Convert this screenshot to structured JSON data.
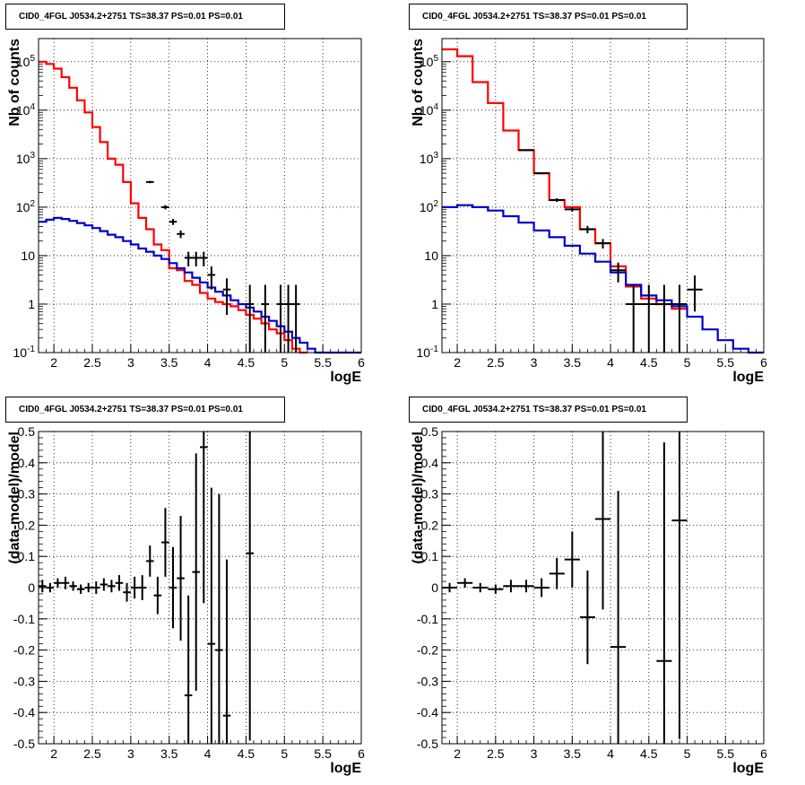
{
  "panels": [
    {
      "title": "CID0_4FGL J0534.2+2751 TS=38.37 PS=0.01 PS=0.01"
    },
    {
      "title": "CID0_4FGL J0534.2+2751 TS=38.37 PS=0.01 PS=0.01"
    },
    {
      "title": "CID0_4FGL J0534.2+2751 TS=38.37 PS=0.01 PS=0.01"
    },
    {
      "title": "CID0_4FGL J0534.2+2751 TS=38.37 PS=0.01 PS=0.01"
    }
  ],
  "colors": {
    "total_model": "#ff0000",
    "source_model": "#0000cc",
    "data": "#000000"
  },
  "chart_data": [
    {
      "type": "line",
      "title": "CID0_4FGL J0534.2+2751 TS=38.37 PS=0.01 PS=0.01",
      "xlabel": "logE",
      "ylabel": "Nb of counts",
      "xlim": [
        1.8,
        6.0
      ],
      "ylim": [
        0.1,
        300000
      ],
      "log_y": true,
      "grid": true,
      "x_ticks": [
        "2",
        "2.5",
        "3",
        "3.5",
        "4",
        "4.5",
        "5",
        "5.5",
        "6"
      ],
      "y_ticks": [
        "10^-1",
        "1",
        "10",
        "10^2",
        "10^3",
        "10^4",
        "10^5"
      ],
      "bin_width": 0.1,
      "series": [
        {
          "kind": "step",
          "color": "#ff0000",
          "x": [
            1.8,
            1.9,
            2.0,
            2.1,
            2.2,
            2.3,
            2.4,
            2.5,
            2.6,
            2.7,
            2.8,
            2.9,
            3.0,
            3.1,
            3.2,
            3.3,
            3.4,
            3.5,
            3.6,
            3.7,
            3.8,
            3.9,
            4.0,
            4.1,
            4.2,
            4.3,
            4.4,
            4.5,
            4.6,
            4.7,
            4.8,
            4.9,
            5.0,
            5.1,
            5.2
          ],
          "values": [
            100000,
            90000,
            72000,
            48000,
            29000,
            16000,
            9000,
            4500,
            2200,
            1000,
            750,
            330,
            120,
            60,
            35,
            17,
            13,
            5.5,
            5,
            3,
            2.5,
            1.7,
            1.3,
            1.1,
            1.0,
            0.9,
            0.75,
            0.6,
            0.5,
            0.4,
            0.3,
            0.25,
            0.18,
            0.12,
            0.1
          ]
        },
        {
          "kind": "step",
          "color": "#0000cc",
          "x": [
            1.8,
            1.9,
            2.0,
            2.1,
            2.2,
            2.3,
            2.4,
            2.5,
            2.6,
            2.7,
            2.8,
            2.9,
            3.0,
            3.1,
            3.2,
            3.3,
            3.4,
            3.5,
            3.6,
            3.7,
            3.8,
            3.9,
            4.0,
            4.1,
            4.2,
            4.3,
            4.4,
            4.5,
            4.6,
            4.7,
            4.8,
            4.9,
            5.0,
            5.1,
            5.2,
            5.3,
            5.4,
            5.5,
            5.6,
            5.7,
            5.8,
            5.9
          ],
          "values": [
            50,
            55,
            60,
            57,
            52,
            47,
            42,
            37,
            32,
            27,
            24,
            20,
            17,
            14,
            12,
            10,
            8.5,
            7,
            5.5,
            4.5,
            3.5,
            2.8,
            2.2,
            1.8,
            1.5,
            1.2,
            1.0,
            0.85,
            0.7,
            0.55,
            0.45,
            0.35,
            0.27,
            0.2,
            0.16,
            0.12,
            0.1,
            0.1,
            0.1,
            0.1,
            0.1,
            0.1
          ]
        },
        {
          "kind": "errorbars",
          "color": "#000000",
          "x": [
            3.25,
            3.45,
            3.55,
            3.65,
            3.75,
            3.85,
            3.95,
            4.05,
            4.25,
            4.55,
            4.75,
            4.95,
            5.05,
            5.15
          ],
          "values": [
            330,
            100,
            50,
            28,
            9,
            9,
            9,
            4,
            2,
            1,
            1,
            1,
            1,
            1
          ],
          "err_low": [
            18,
            10,
            7,
            5,
            3,
            3,
            3,
            2,
            1.4,
            0.9,
            0.9,
            0.9,
            0.9,
            0.9
          ],
          "err_high": [
            18,
            10,
            7,
            5,
            3,
            3,
            3,
            2,
            1.4,
            1.5,
            1.5,
            1.5,
            1.5,
            1.5
          ]
        }
      ]
    },
    {
      "type": "line",
      "title": "CID0_4FGL J0534.2+2751 TS=38.37 PS=0.01 PS=0.01",
      "xlabel": "logE",
      "ylabel": "Nb of counts",
      "xlim": [
        1.8,
        6.0
      ],
      "ylim": [
        0.1,
        300000
      ],
      "log_y": true,
      "grid": true,
      "x_ticks": [
        "2",
        "2.5",
        "3",
        "3.5",
        "4",
        "4.5",
        "5",
        "5.5",
        "6"
      ],
      "y_ticks": [
        "10^-1",
        "1",
        "10",
        "10^2",
        "10^3",
        "10^4",
        "10^5"
      ],
      "bin_width": 0.2,
      "series": [
        {
          "kind": "step",
          "color": "#ff0000",
          "x": [
            1.8,
            2.0,
            2.2,
            2.4,
            2.6,
            2.8,
            3.0,
            3.2,
            3.4,
            3.6,
            3.8,
            4.0,
            4.2,
            4.4,
            4.6,
            4.8
          ],
          "values": [
            180000,
            130000,
            38000,
            14000,
            3800,
            1500,
            500,
            140,
            100,
            35,
            18,
            6,
            2.3,
            1.3,
            1.0,
            0.8
          ]
        },
        {
          "kind": "step",
          "color": "#0000cc",
          "x": [
            1.8,
            2.0,
            2.2,
            2.4,
            2.6,
            2.8,
            3.0,
            3.2,
            3.4,
            3.6,
            3.8,
            4.0,
            4.2,
            4.4,
            4.6,
            4.8,
            5.0,
            5.2,
            5.4,
            5.6,
            5.8
          ],
          "values": [
            100,
            110,
            100,
            85,
            65,
            48,
            33,
            24,
            16,
            11,
            7.5,
            4.5,
            2.5,
            1.5,
            1.2,
            0.9,
            0.55,
            0.3,
            0.18,
            0.12,
            0.1
          ]
        },
        {
          "kind": "errorbars",
          "color": "#000000",
          "x": [
            2.9,
            3.1,
            3.3,
            3.5,
            3.7,
            3.9,
            4.1,
            4.3,
            4.5,
            4.7,
            4.9,
            5.1
          ],
          "values": [
            1500,
            500,
            140,
            90,
            35,
            18,
            5,
            1,
            1,
            1,
            1,
            2
          ],
          "err_low": [
            40,
            22,
            12,
            9,
            6,
            4,
            2.2,
            0.9,
            0.9,
            0.9,
            0.9,
            1.3
          ],
          "err_high": [
            40,
            22,
            12,
            9,
            6,
            4,
            2.2,
            1.5,
            1.5,
            1.5,
            1.5,
            1.9
          ]
        }
      ]
    },
    {
      "type": "scatter",
      "title": "CID0_4FGL J0534.2+2751 TS=38.37 PS=0.01 PS=0.01",
      "xlabel": "logE",
      "ylabel": "(data-model)/model",
      "xlim": [
        1.8,
        6.0
      ],
      "ylim": [
        -0.5,
        0.5
      ],
      "grid": true,
      "x_ticks": [
        "2",
        "2.5",
        "3",
        "3.5",
        "4",
        "4.5",
        "5",
        "5.5",
        "6"
      ],
      "y_ticks": [
        "-0.5",
        "-0.4",
        "-0.3",
        "-0.2",
        "-0.1",
        "0",
        "0.1",
        "0.2",
        "0.3",
        "0.4",
        "0.5"
      ],
      "bin_width": 0.1,
      "series": [
        {
          "kind": "errorbars",
          "color": "#000000",
          "x": [
            1.85,
            1.95,
            2.05,
            2.15,
            2.25,
            2.35,
            2.45,
            2.55,
            2.65,
            2.75,
            2.85,
            2.95,
            3.05,
            3.15,
            3.25,
            3.35,
            3.45,
            3.55,
            3.65,
            3.75,
            3.85,
            3.95,
            4.05,
            4.15,
            4.25,
            4.55
          ],
          "values": [
            0.005,
            0.0,
            0.015,
            0.015,
            0.005,
            -0.005,
            0.0,
            0.0,
            0.01,
            0.005,
            0.015,
            -0.015,
            0.0,
            0.0,
            0.085,
            -0.025,
            0.145,
            0.0,
            0.03,
            -0.345,
            0.05,
            0.45,
            -0.18,
            -0.2,
            -0.41,
            0.11
          ],
          "err": [
            0.02,
            0.015,
            0.015,
            0.02,
            0.015,
            0.015,
            0.015,
            0.02,
            0.02,
            0.02,
            0.025,
            0.03,
            0.035,
            0.04,
            0.05,
            0.06,
            0.11,
            0.13,
            0.2,
            0.32,
            0.38,
            0.5,
            0.5,
            0.5,
            0.5,
            0.6
          ]
        }
      ]
    },
    {
      "type": "scatter",
      "title": "CID0_4FGL J0534.2+2751 TS=38.37 PS=0.01 PS=0.01",
      "xlabel": "logE",
      "ylabel": "(data-model)/model",
      "xlim": [
        1.8,
        6.0
      ],
      "ylim": [
        -0.5,
        0.5
      ],
      "grid": true,
      "x_ticks": [
        "2",
        "2.5",
        "3",
        "3.5",
        "4",
        "4.5",
        "5",
        "5.5",
        "6"
      ],
      "y_ticks": [
        "-0.5",
        "-0.4",
        "-0.3",
        "-0.2",
        "-0.1",
        "0",
        "0.1",
        "0.2",
        "0.3",
        "0.4",
        "0.5"
      ],
      "bin_width": 0.2,
      "series": [
        {
          "kind": "errorbars",
          "color": "#000000",
          "x": [
            1.9,
            2.1,
            2.3,
            2.5,
            2.7,
            2.9,
            3.1,
            3.3,
            3.5,
            3.7,
            3.9,
            4.1,
            4.7,
            4.9
          ],
          "values": [
            0.0,
            0.015,
            0.0,
            -0.005,
            0.005,
            0.005,
            0.0,
            0.045,
            0.09,
            -0.095,
            0.22,
            -0.19,
            -0.235,
            0.215
          ],
          "err": [
            0.015,
            0.015,
            0.015,
            0.015,
            0.02,
            0.02,
            0.03,
            0.05,
            0.09,
            0.15,
            0.29,
            0.5,
            0.7,
            0.7
          ]
        }
      ]
    }
  ]
}
